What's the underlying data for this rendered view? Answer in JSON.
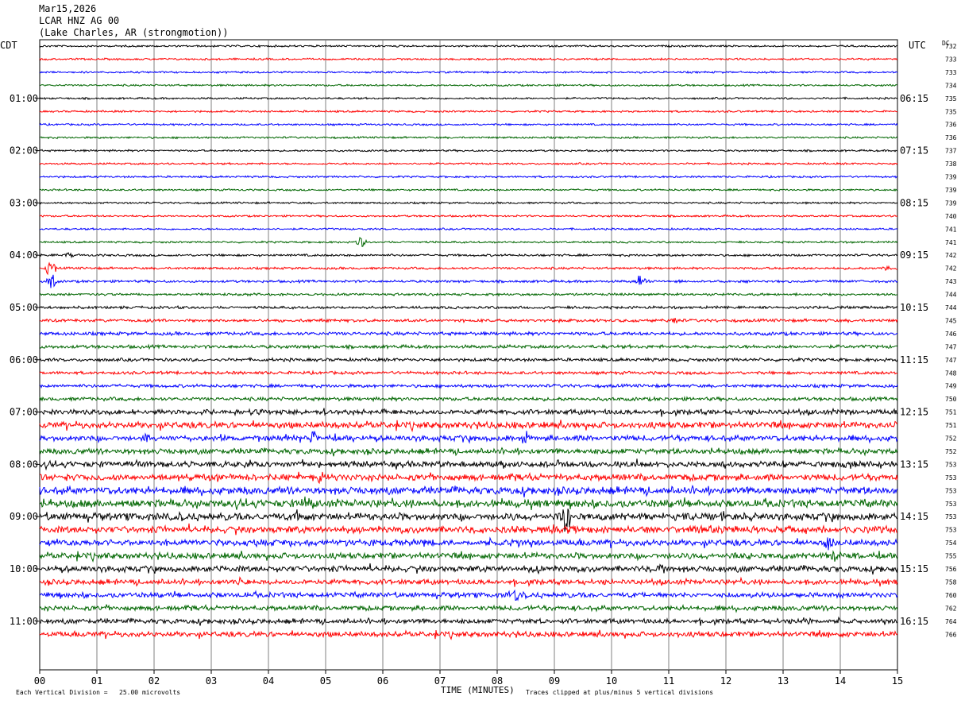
{
  "header": {
    "date": "Mar15,2026",
    "station": "LCAR HNZ AG 00",
    "location": "(Lake Charles, AR (strongmotion))"
  },
  "labels": {
    "left_tz": "CDT",
    "right_tz": "UTC",
    "dc": "DC",
    "footer_left": "Each Vertical Division =   25.00 microvolts",
    "footer_center": "TIME (MINUTES)",
    "footer_right": "Traces clipped at plus/minus 5 vertical divisions"
  },
  "colors": {
    "trace_cycle": [
      "#000000",
      "#ff0000",
      "#0000ff",
      "#006600"
    ],
    "grid": "#808080"
  },
  "chart_data": {
    "type": "line",
    "title": "",
    "xlabel": "TIME (MINUTES)",
    "x_ticks": [
      "00",
      "01",
      "02",
      "03",
      "04",
      "05",
      "06",
      "07",
      "08",
      "09",
      "10",
      "11",
      "12",
      "13",
      "14",
      "15"
    ],
    "xlim": [
      0,
      15
    ],
    "left_hour_labels": [
      "01:00",
      "02:00",
      "03:00",
      "04:00",
      "05:00",
      "06:00",
      "07:00",
      "08:00",
      "09:00",
      "10:00",
      "11:00"
    ],
    "right_hour_labels": [
      "06:15",
      "07:15",
      "08:15",
      "09:15",
      "10:15",
      "11:15",
      "12:15",
      "13:15",
      "14:15",
      "15:15",
      "16:15"
    ],
    "dc_offsets": [
      "732",
      "733",
      "733",
      "734",
      "735",
      "735",
      "736",
      "736",
      "737",
      "738",
      "739",
      "739",
      "739",
      "740",
      "741",
      "741",
      "742",
      "742",
      "743",
      "744",
      "744",
      "745",
      "746",
      "747",
      "747",
      "748",
      "749",
      "750",
      "751",
      "751",
      "752",
      "752",
      "753",
      "753",
      "753",
      "753",
      "753",
      "753",
      "754",
      "755",
      "756",
      "758",
      "760",
      "762",
      "764",
      "766"
    ],
    "noise_levels": [
      1,
      1,
      1,
      1,
      1,
      1,
      1,
      1,
      1,
      1,
      1,
      1,
      1,
      1,
      1,
      1,
      1.2,
      1.2,
      1.3,
      1.3,
      1.4,
      1.6,
      1.8,
      1.8,
      1.7,
      1.6,
      1.7,
      1.9,
      2.6,
      3.3,
      2.9,
      2.8,
      3.0,
      3.3,
      3.8,
      3.9,
      3.7,
      3.5,
      3.2,
      3.1,
      3.1,
      2.7,
      2.6,
      2.5,
      2.5,
      2.7
    ],
    "events": [
      {
        "trace": 15,
        "minute": 5.63,
        "amp": 7
      },
      {
        "trace": 16,
        "minute": 0.5,
        "amp": 3
      },
      {
        "trace": 17,
        "minute": 0.2,
        "amp": 14
      },
      {
        "trace": 17,
        "minute": 14.8,
        "amp": 4
      },
      {
        "trace": 18,
        "minute": 10.5,
        "amp": 8
      },
      {
        "trace": 18,
        "minute": 0.2,
        "amp": 12
      },
      {
        "trace": 21,
        "minute": 11.1,
        "amp": 5
      },
      {
        "trace": 28,
        "minute": 14.1,
        "amp": 6
      },
      {
        "trace": 30,
        "minute": 1.85,
        "amp": 8
      },
      {
        "trace": 30,
        "minute": 4.8,
        "amp": 8
      },
      {
        "trace": 30,
        "minute": 8.5,
        "amp": 9
      },
      {
        "trace": 33,
        "minute": 4.9,
        "amp": 7
      },
      {
        "trace": 35,
        "minute": 4.6,
        "amp": 6
      },
      {
        "trace": 36,
        "minute": 9.2,
        "amp": 26
      },
      {
        "trace": 36,
        "minute": 4.5,
        "amp": 7
      },
      {
        "trace": 36,
        "minute": 12.5,
        "amp": 6
      },
      {
        "trace": 38,
        "minute": 13.8,
        "amp": 9
      },
      {
        "trace": 38,
        "minute": 8.3,
        "amp": 6
      },
      {
        "trace": 39,
        "minute": 13.9,
        "amp": 10
      },
      {
        "trace": 40,
        "minute": 8.7,
        "amp": 8
      },
      {
        "trace": 40,
        "minute": 10.9,
        "amp": 7
      },
      {
        "trace": 41,
        "minute": 3.5,
        "amp": 7
      },
      {
        "trace": 42,
        "minute": 8.3,
        "amp": 7
      },
      {
        "trace": 44,
        "minute": 8.9,
        "amp": 5
      },
      {
        "trace": 44,
        "minute": 13.4,
        "amp": 6
      }
    ]
  }
}
